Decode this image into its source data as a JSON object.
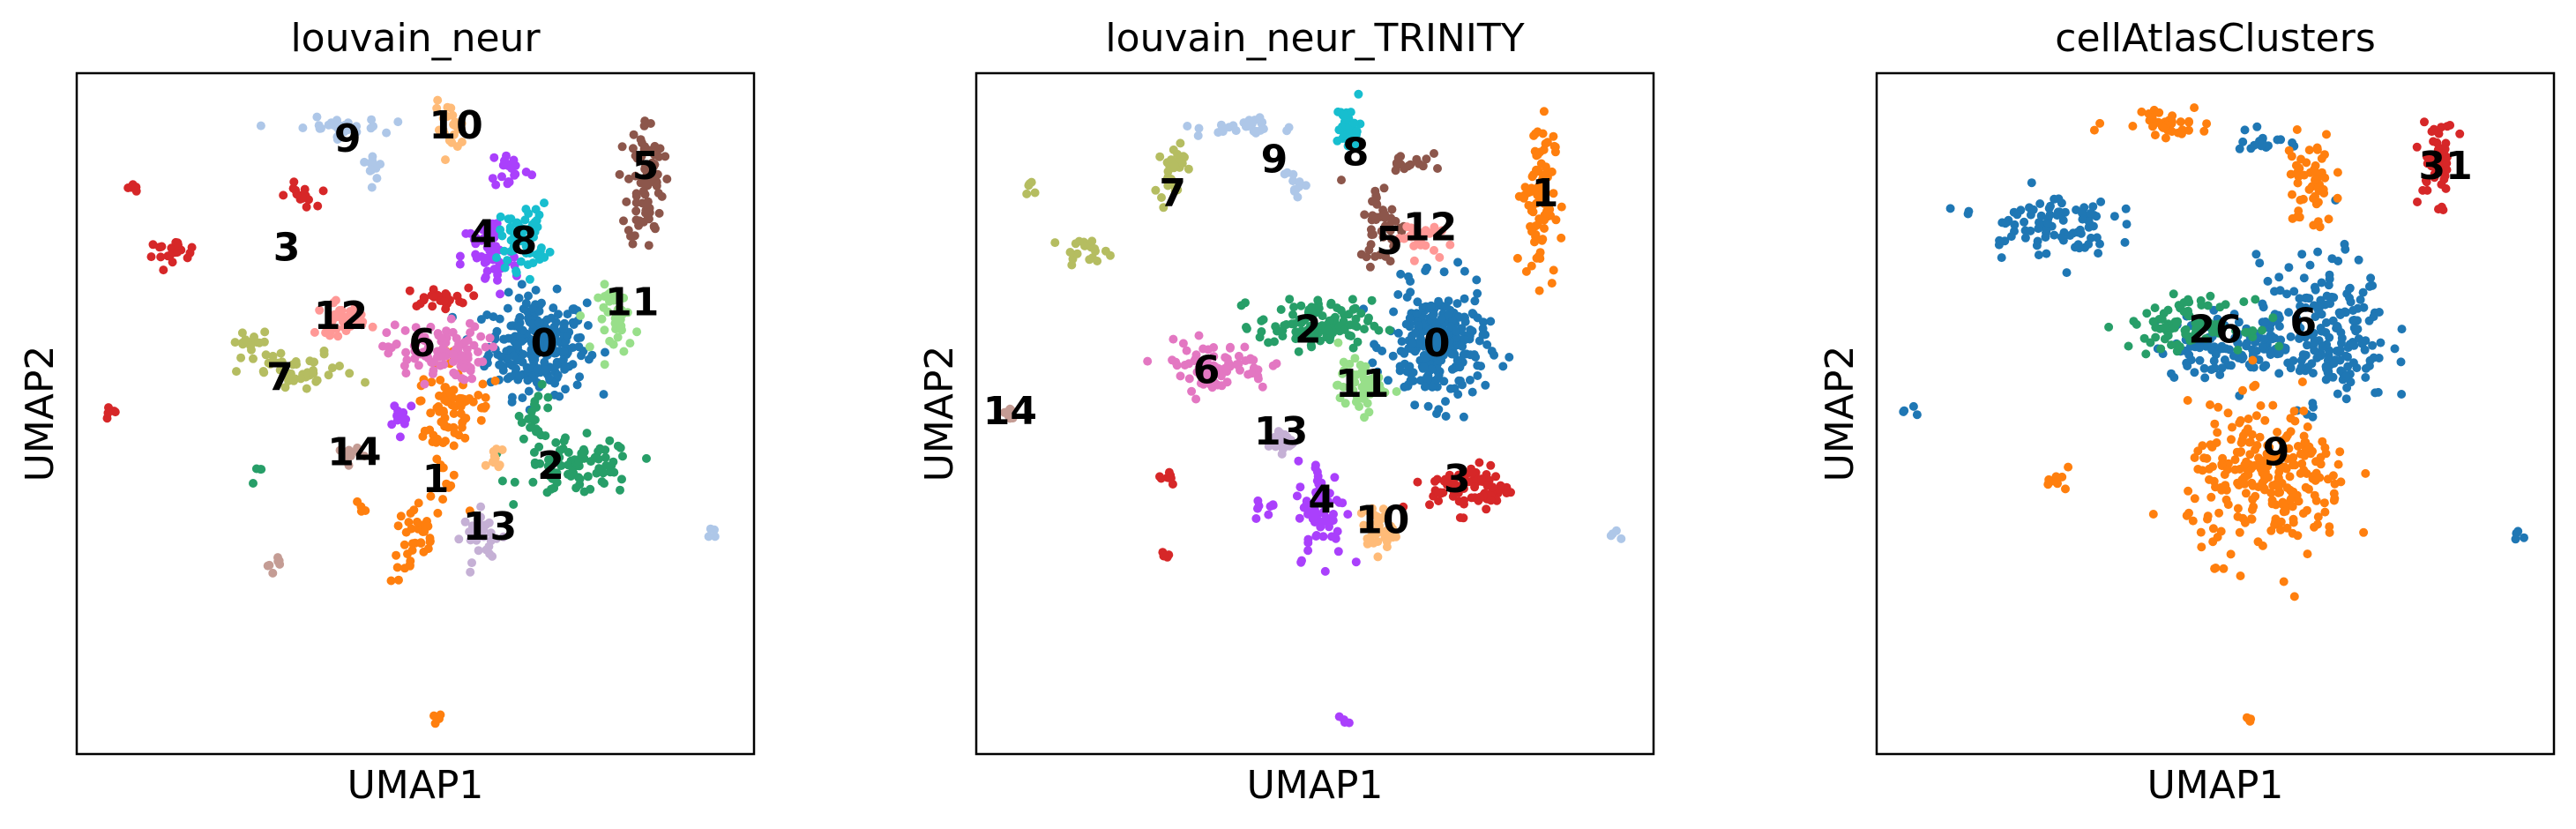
{
  "chart_data": [
    {
      "type": "scatter",
      "title": "louvain_neur",
      "xlabel": "UMAP1",
      "ylabel": "UMAP2",
      "legend": "on-data",
      "grid": false,
      "xlim": [
        0,
        100
      ],
      "ylim": [
        0,
        100
      ],
      "clusters": [
        {
          "name": "0",
          "color": "#1f77b4",
          "label": [
            69,
            60
          ],
          "n": 260,
          "blobs": [
            [
              68,
              60,
              6,
              6
            ]
          ]
        },
        {
          "name": "1",
          "color": "#ff7f0e",
          "label": [
            53,
            40
          ],
          "n": 130,
          "blobs": [
            [
              54,
              48,
              3,
              8
            ],
            [
              50,
              31,
              3,
              5
            ],
            [
              57,
              52,
              5,
              3
            ],
            [
              42,
              36,
              1,
              1.2
            ],
            [
              53,
              5,
              1,
              1
            ]
          ]
        },
        {
          "name": "2",
          "color": "#279e68",
          "label": [
            70,
            42
          ],
          "n": 110,
          "blobs": [
            [
              74,
              42,
              7,
              3.5
            ],
            [
              68,
              50,
              2,
              3
            ],
            [
              27,
              41,
              1.2,
              1
            ]
          ]
        },
        {
          "name": "3",
          "color": "#d62728",
          "label": [
            31,
            74
          ],
          "n": 70,
          "blobs": [
            [
              14,
              74,
              3.5,
              1.2
            ],
            [
              33,
              82,
              1.8,
              1.5
            ],
            [
              8,
              83,
              1,
              1
            ],
            [
              5,
              50,
              1,
              1
            ],
            [
              53,
              67,
              4,
              1.2
            ]
          ]
        },
        {
          "name": "4",
          "color": "#aa40fc",
          "label": [
            60,
            76
          ],
          "n": 90,
          "blobs": [
            [
              61,
              73,
              3.5,
              5
            ],
            [
              64,
              86,
              2.5,
              2.5
            ],
            [
              48,
              50,
              2,
              2
            ]
          ]
        },
        {
          "name": "5",
          "color": "#8c564b",
          "label": [
            84,
            86
          ],
          "n": 80,
          "blobs": [
            [
              84,
              84,
              2.2,
              8
            ]
          ]
        },
        {
          "name": "6",
          "color": "#e377c2",
          "label": [
            51,
            60
          ],
          "n": 100,
          "blobs": [
            [
              53,
              59,
              6,
              3.5
            ]
          ]
        },
        {
          "name": "7",
          "color": "#b5bd61",
          "label": [
            30,
            55
          ],
          "n": 60,
          "blobs": [
            [
              33,
              56,
              7,
              2.5
            ],
            [
              26,
              60,
              3,
              2
            ]
          ]
        },
        {
          "name": "8",
          "color": "#17becf",
          "label": [
            66,
            75
          ],
          "n": 60,
          "blobs": [
            [
              66,
              76,
              3,
              4
            ]
          ]
        },
        {
          "name": "9",
          "color": "#aec7e8",
          "label": [
            40,
            90
          ],
          "n": 45,
          "blobs": [
            [
              38,
              92,
              6,
              1.2
            ],
            [
              44,
              87,
              1.5,
              2
            ],
            [
              94,
              32,
              1,
              1
            ]
          ]
        },
        {
          "name": "10",
          "color": "#ffbb78",
          "label": [
            56,
            92
          ],
          "n": 35,
          "blobs": [
            [
              55,
              92,
              1.8,
              3
            ],
            [
              62,
              43,
              1.2,
              2
            ]
          ]
        },
        {
          "name": "11",
          "color": "#98df8a",
          "label": [
            82,
            66
          ],
          "n": 40,
          "blobs": [
            [
              80,
              64,
              2.5,
              4
            ]
          ]
        },
        {
          "name": "12",
          "color": "#ff9896",
          "label": [
            39,
            64
          ],
          "n": 35,
          "blobs": [
            [
              39,
              64,
              3,
              2
            ]
          ]
        },
        {
          "name": "13",
          "color": "#c5b0d5",
          "label": [
            61,
            33
          ],
          "n": 35,
          "blobs": [
            [
              60,
              32,
              2.5,
              3
            ]
          ]
        },
        {
          "name": "14",
          "color": "#c49c94",
          "label": [
            41,
            44
          ],
          "n": 20,
          "blobs": [
            [
              40,
              44,
              1.5,
              1.2
            ],
            [
              29,
              28,
              1,
              1
            ]
          ]
        }
      ]
    },
    {
      "type": "scatter",
      "title": "louvain_neur_TRINITY",
      "xlabel": "UMAP1",
      "ylabel": "UMAP2",
      "legend": "on-data",
      "grid": false,
      "xlim": [
        0,
        100
      ],
      "ylim": [
        0,
        100
      ],
      "clusters": [
        {
          "name": "0",
          "color": "#1f77b4",
          "label": [
            68,
            60
          ],
          "n": 260,
          "blobs": [
            [
              68,
              60,
              6,
              7
            ]
          ]
        },
        {
          "name": "1",
          "color": "#ff7f0e",
          "label": [
            84,
            82
          ],
          "n": 90,
          "blobs": [
            [
              83,
              82,
              2,
              10
            ]
          ]
        },
        {
          "name": "2",
          "color": "#279e68",
          "label": [
            49,
            62
          ],
          "n": 110,
          "blobs": [
            [
              50,
              63,
              7,
              3
            ]
          ]
        },
        {
          "name": "3",
          "color": "#d62728",
          "label": [
            71,
            40
          ],
          "n": 90,
          "blobs": [
            [
              73,
              39,
              5,
              3
            ],
            [
              28,
              41,
              1.5,
              1.2
            ],
            [
              28,
              29,
              1,
              1
            ]
          ]
        },
        {
          "name": "4",
          "color": "#aa40fc",
          "label": [
            51,
            37
          ],
          "n": 80,
          "blobs": [
            [
              51,
              36,
              3,
              6
            ],
            [
              43,
              36,
              1.5,
              1.5
            ],
            [
              54,
              5,
              1,
              1
            ]
          ]
        },
        {
          "name": "5",
          "color": "#8c564b",
          "label": [
            61,
            75
          ],
          "n": 60,
          "blobs": [
            [
              60,
              78,
              3,
              5
            ],
            [
              64,
              87,
              2.5,
              2
            ]
          ]
        },
        {
          "name": "6",
          "color": "#e377c2",
          "label": [
            34,
            56
          ],
          "n": 80,
          "blobs": [
            [
              35,
              57,
              7,
              3
            ]
          ]
        },
        {
          "name": "7",
          "color": "#b5bd61",
          "label": [
            29,
            82
          ],
          "n": 55,
          "blobs": [
            [
              29,
              86,
              1.5,
              4
            ],
            [
              16,
              74,
              3,
              1.2
            ],
            [
              8,
              83,
              1,
              1
            ]
          ]
        },
        {
          "name": "8",
          "color": "#17becf",
          "label": [
            56,
            88
          ],
          "n": 35,
          "blobs": [
            [
              55,
              92,
              1.5,
              3
            ]
          ]
        },
        {
          "name": "9",
          "color": "#aec7e8",
          "label": [
            44,
            87
          ],
          "n": 40,
          "blobs": [
            [
              40,
              92,
              6,
              1.2
            ],
            [
              47,
              84,
              1.5,
              2
            ],
            [
              94,
              32,
              1,
              1
            ]
          ]
        },
        {
          "name": "10",
          "color": "#ffbb78",
          "label": [
            60,
            34
          ],
          "n": 35,
          "blobs": [
            [
              59,
              33,
              2,
              3
            ]
          ]
        },
        {
          "name": "11",
          "color": "#98df8a",
          "label": [
            57,
            54
          ],
          "n": 60,
          "blobs": [
            [
              57,
              54,
              3,
              3
            ]
          ]
        },
        {
          "name": "12",
          "color": "#ff9896",
          "label": [
            67,
            77
          ],
          "n": 30,
          "blobs": [
            [
              65,
              76,
              2.5,
              2
            ]
          ]
        },
        {
          "name": "13",
          "color": "#c5b0d5",
          "label": [
            45,
            47
          ],
          "n": 25,
          "blobs": [
            [
              45,
              46,
              1.5,
              1.5
            ]
          ]
        },
        {
          "name": "14",
          "color": "#c49c94",
          "label": [
            5,
            50
          ],
          "n": 8,
          "blobs": [
            [
              5,
              50,
              1,
              1
            ]
          ]
        }
      ]
    },
    {
      "type": "scatter",
      "title": "cellAtlasClusters",
      "xlabel": "UMAP1",
      "ylabel": "UMAP2",
      "legend": "on-data",
      "grid": false,
      "xlim": [
        0,
        100
      ],
      "ylim": [
        0,
        100
      ],
      "clusters": [
        {
          "name": "6",
          "color": "#1f77b4",
          "label": [
            63,
            63
          ],
          "n": 420,
          "blobs": [
            [
              66,
              62,
              8,
              9
            ],
            [
              53,
              60,
              10,
              4
            ],
            [
              25,
              78,
              8,
              4
            ],
            [
              57,
              90,
              3,
              2
            ],
            [
              5,
              50,
              1,
              1
            ],
            [
              95,
              32,
              1,
              1
            ]
          ]
        },
        {
          "name": "9",
          "color": "#ff7f0e",
          "label": [
            59,
            44
          ],
          "n": 360,
          "blobs": [
            [
              58,
              40,
              10,
              9
            ],
            [
              64,
              84,
              3,
              6
            ],
            [
              42,
              93,
              6,
              2
            ],
            [
              27,
              41,
              2,
              1.5
            ],
            [
              55,
              5,
              1,
              1
            ]
          ]
        },
        {
          "name": "26",
          "color": "#279e68",
          "label": [
            50,
            62
          ],
          "n": 90,
          "blobs": [
            [
              46,
              63,
              7,
              3
            ]
          ]
        },
        {
          "name": "31",
          "color": "#d62728",
          "label": [
            84,
            86
          ],
          "n": 50,
          "blobs": [
            [
              83,
              87,
              2.2,
              5
            ]
          ]
        }
      ]
    }
  ]
}
